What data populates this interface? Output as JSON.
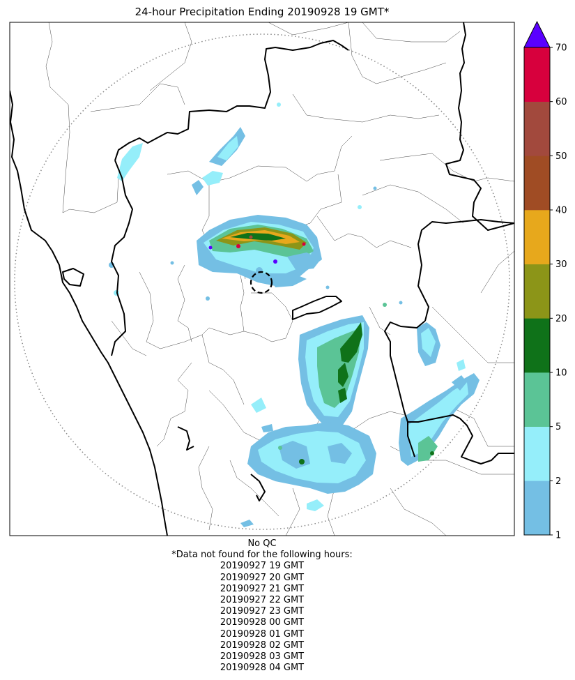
{
  "title": "24-hour Precipitation Ending 20190928 19 GMT*",
  "footer": {
    "qc_label": "No QC",
    "note": "*Data not found for the following hours:",
    "missing_hours": [
      "20190927 19 GMT",
      "20190927 20 GMT",
      "20190927 21 GMT",
      "20190927 22 GMT",
      "20190927 23 GMT",
      "20190928 00 GMT",
      "20190928 01 GMT",
      "20190928 02 GMT",
      "20190928 03 GMT",
      "20190928 04 GMT"
    ]
  },
  "colorbar": {
    "extend": "max",
    "extend_color": "#5a00ff",
    "levels": [
      1,
      2,
      5,
      10,
      20,
      30,
      40,
      50,
      60,
      70
    ],
    "colors": [
      "#74bfe4",
      "#95eefa",
      "#5bc496",
      "#0f7219",
      "#8c9518",
      "#e7a81c",
      "#a04c24",
      "#a2493d",
      "#d7003d"
    ]
  }
}
